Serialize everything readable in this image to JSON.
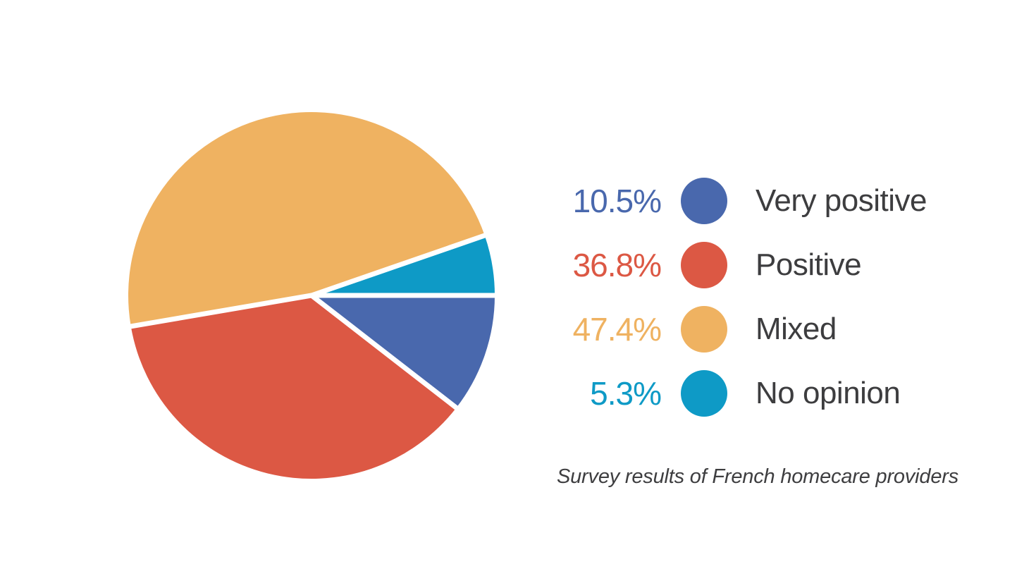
{
  "chart_data": {
    "type": "pie",
    "title": "",
    "caption": "Survey results of French homecare providers",
    "slices": [
      {
        "label": "Very positive",
        "value_pct": 10.5,
        "percent_text": "10.5%",
        "color": "#4968ad"
      },
      {
        "label": "Positive",
        "value_pct": 36.8,
        "percent_text": "36.8%",
        "color": "#dc5844"
      },
      {
        "label": "Mixed",
        "value_pct": 47.4,
        "percent_text": "47.4%",
        "color": "#efb261"
      },
      {
        "label": "No opinion",
        "value_pct": 5.3,
        "percent_text": "5.3%",
        "color": "#0e9ac6"
      }
    ],
    "render_order_ccw_from_east": [
      "No opinion",
      "Mixed",
      "Positive",
      "Very positive"
    ],
    "separator_color": "#ffffff",
    "background": "#ffffff",
    "legend_position": "right"
  },
  "legend": {
    "items": [
      {
        "percent": "10.5%",
        "label": "Very positive",
        "color": "#4968ad"
      },
      {
        "percent": "36.8%",
        "label": "Positive",
        "color": "#dc5844"
      },
      {
        "percent": "47.4%",
        "label": "Mixed",
        "color": "#efb261"
      },
      {
        "percent": "5.3%",
        "label": "No opinion",
        "color": "#0e9ac6"
      }
    ]
  },
  "caption": {
    "text": "Survey results of French homecare providers"
  }
}
